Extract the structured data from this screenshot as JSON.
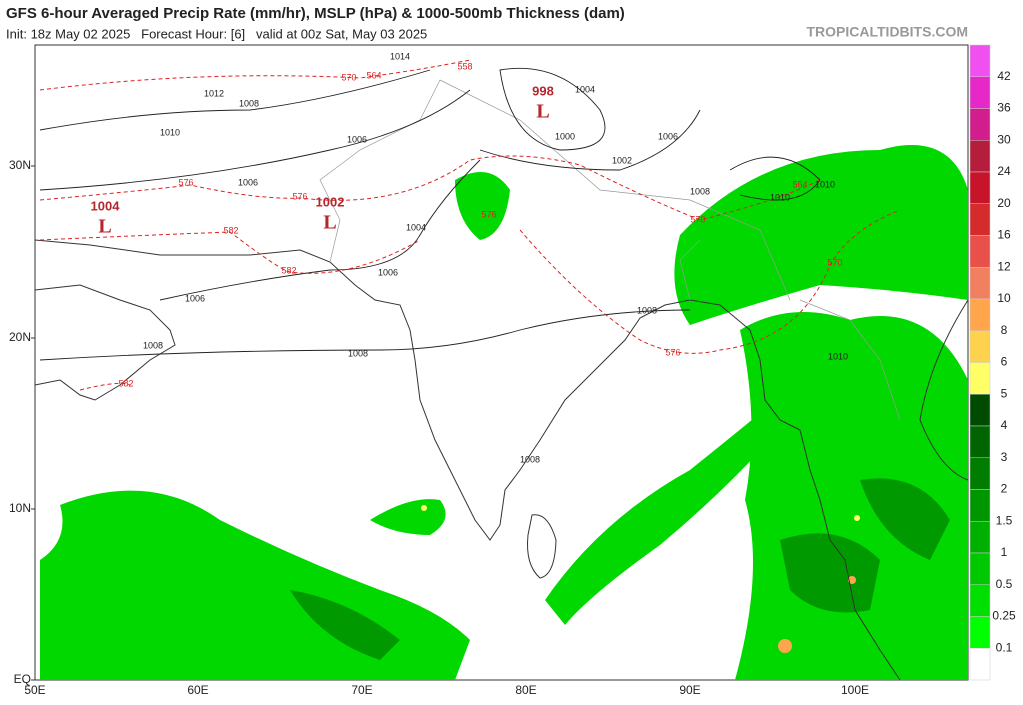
{
  "header": {
    "title": "GFS 6-hour Averaged Precip Rate (mm/hr), MSLP (hPa) & 1000-500mb Thickness (dam)",
    "subtitle": "Init: 18z May 02 2025   Forecast Hour: [6]   valid at 00z Sat, May 03 2025",
    "watermark": "TROPICALTIDBITS.COM"
  },
  "map": {
    "lon_labels": [
      "50E",
      "60E",
      "70E",
      "80E",
      "90E",
      "100E"
    ],
    "lat_labels": [
      "EQ",
      "10N",
      "20N",
      "30N"
    ],
    "lows": [
      {
        "pressure": "1004",
        "symbol": "L"
      },
      {
        "pressure": "1002",
        "symbol": "L"
      },
      {
        "pressure": "998",
        "symbol": "L"
      }
    ],
    "isobar_labels": [
      "1012",
      "1008",
      "1010",
      "1006",
      "1006",
      "1004",
      "1006",
      "1006",
      "1008",
      "1008",
      "1008",
      "1008",
      "1004",
      "1000",
      "1002",
      "1006",
      "1008",
      "1010",
      "1010",
      "1010",
      "1014"
    ],
    "thickness_labels": [
      "570",
      "564",
      "576",
      "576",
      "582",
      "582",
      "582",
      "576",
      "576",
      "570",
      "570",
      "564",
      "558"
    ]
  },
  "colorbar": {
    "labels": [
      "42",
      "36",
      "30",
      "24",
      "20",
      "16",
      "12",
      "10",
      "8",
      "6",
      "5",
      "4",
      "3",
      "2",
      "1.5",
      "1",
      "0.5",
      "0.25",
      "0.1"
    ],
    "colors": [
      "#f050f0",
      "#e628c8",
      "#d21e8c",
      "#b41e3c",
      "#c8142b",
      "#d62b2b",
      "#e8504a",
      "#f08060",
      "#ffa64d",
      "#ffd24d",
      "#ffff66",
      "#004b00",
      "#006400",
      "#007d00",
      "#009600",
      "#00b000",
      "#00c800",
      "#00e000",
      "#00ff00",
      "#ffffff"
    ]
  }
}
